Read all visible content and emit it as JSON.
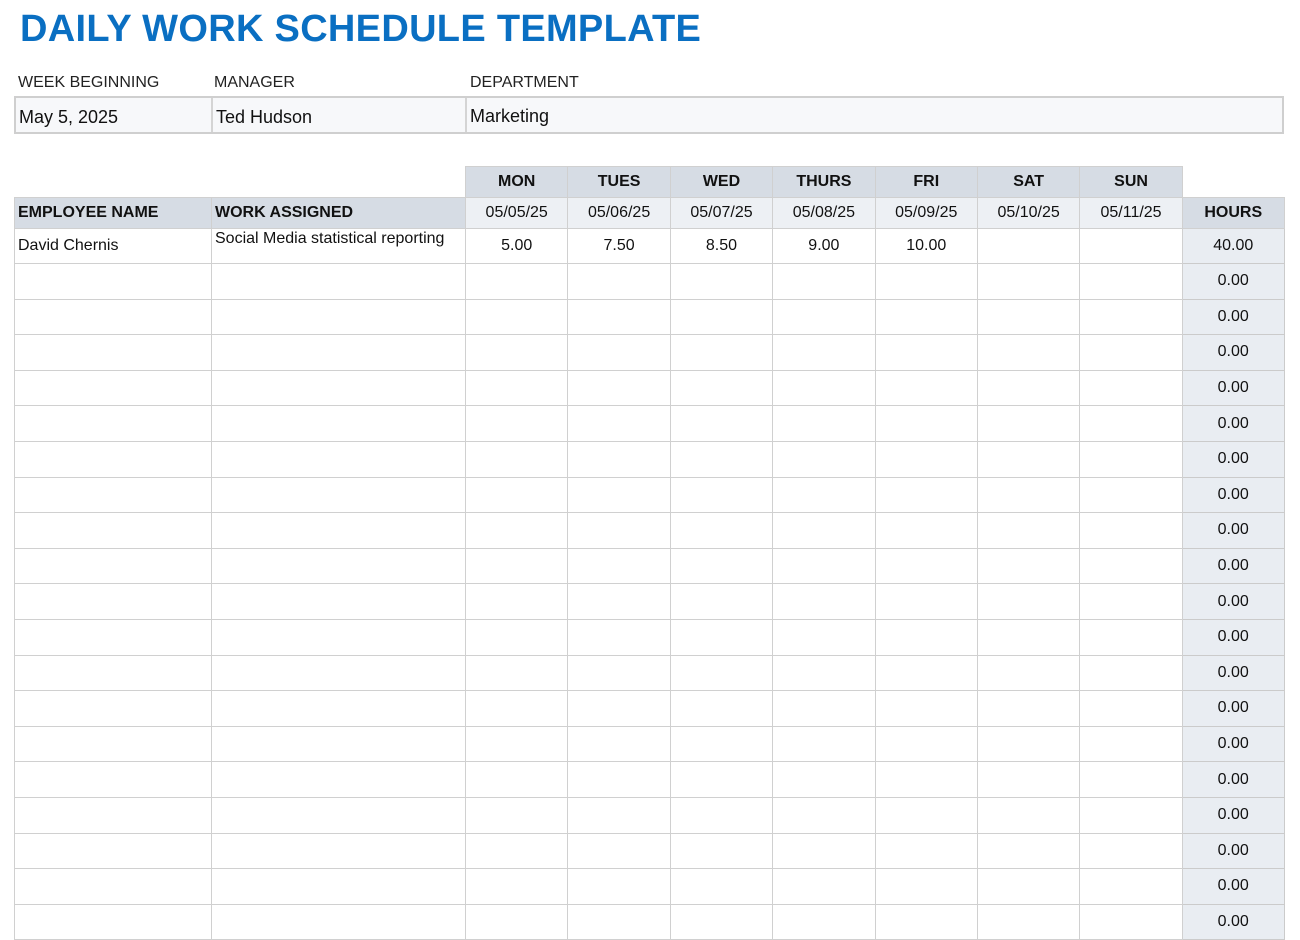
{
  "title": "DAILY WORK SCHEDULE TEMPLATE",
  "info": {
    "week_label": "WEEK BEGINNING",
    "week_value": "May 5, 2025",
    "manager_label": "MANAGER",
    "manager_value": "Ted Hudson",
    "department_label": "DEPARTMENT",
    "department_value": "Marketing"
  },
  "table": {
    "employee_header": "EMPLOYEE NAME",
    "work_header": "WORK ASSIGNED",
    "hours_header": "HOURS",
    "days": [
      {
        "day": "MON",
        "date": "05/05/25"
      },
      {
        "day": "TUES",
        "date": "05/06/25"
      },
      {
        "day": "WED",
        "date": "05/07/25"
      },
      {
        "day": "THURS",
        "date": "05/08/25"
      },
      {
        "day": "FRI",
        "date": "05/09/25"
      },
      {
        "day": "SAT",
        "date": "05/10/25"
      },
      {
        "day": "SUN",
        "date": "05/11/25"
      }
    ],
    "rows": [
      {
        "name": "David Chernis",
        "work": "Social Media statistical reporting",
        "hours": [
          "5.00",
          "7.50",
          "8.50",
          "9.00",
          "10.00",
          "",
          ""
        ],
        "total": "40.00"
      },
      {
        "name": "",
        "work": "",
        "hours": [
          "",
          "",
          "",
          "",
          "",
          "",
          ""
        ],
        "total": "0.00"
      },
      {
        "name": "",
        "work": "",
        "hours": [
          "",
          "",
          "",
          "",
          "",
          "",
          ""
        ],
        "total": "0.00"
      },
      {
        "name": "",
        "work": "",
        "hours": [
          "",
          "",
          "",
          "",
          "",
          "",
          ""
        ],
        "total": "0.00"
      },
      {
        "name": "",
        "work": "",
        "hours": [
          "",
          "",
          "",
          "",
          "",
          "",
          ""
        ],
        "total": "0.00"
      },
      {
        "name": "",
        "work": "",
        "hours": [
          "",
          "",
          "",
          "",
          "",
          "",
          ""
        ],
        "total": "0.00"
      },
      {
        "name": "",
        "work": "",
        "hours": [
          "",
          "",
          "",
          "",
          "",
          "",
          ""
        ],
        "total": "0.00"
      },
      {
        "name": "",
        "work": "",
        "hours": [
          "",
          "",
          "",
          "",
          "",
          "",
          ""
        ],
        "total": "0.00"
      },
      {
        "name": "",
        "work": "",
        "hours": [
          "",
          "",
          "",
          "",
          "",
          "",
          ""
        ],
        "total": "0.00"
      },
      {
        "name": "",
        "work": "",
        "hours": [
          "",
          "",
          "",
          "",
          "",
          "",
          ""
        ],
        "total": "0.00"
      },
      {
        "name": "",
        "work": "",
        "hours": [
          "",
          "",
          "",
          "",
          "",
          "",
          ""
        ],
        "total": "0.00"
      },
      {
        "name": "",
        "work": "",
        "hours": [
          "",
          "",
          "",
          "",
          "",
          "",
          ""
        ],
        "total": "0.00"
      },
      {
        "name": "",
        "work": "",
        "hours": [
          "",
          "",
          "",
          "",
          "",
          "",
          ""
        ],
        "total": "0.00"
      },
      {
        "name": "",
        "work": "",
        "hours": [
          "",
          "",
          "",
          "",
          "",
          "",
          ""
        ],
        "total": "0.00"
      },
      {
        "name": "",
        "work": "",
        "hours": [
          "",
          "",
          "",
          "",
          "",
          "",
          ""
        ],
        "total": "0.00"
      },
      {
        "name": "",
        "work": "",
        "hours": [
          "",
          "",
          "",
          "",
          "",
          "",
          ""
        ],
        "total": "0.00"
      },
      {
        "name": "",
        "work": "",
        "hours": [
          "",
          "",
          "",
          "",
          "",
          "",
          ""
        ],
        "total": "0.00"
      },
      {
        "name": "",
        "work": "",
        "hours": [
          "",
          "",
          "",
          "",
          "",
          "",
          ""
        ],
        "total": "0.00"
      },
      {
        "name": "",
        "work": "",
        "hours": [
          "",
          "",
          "",
          "",
          "",
          "",
          ""
        ],
        "total": "0.00"
      },
      {
        "name": "",
        "work": "",
        "hours": [
          "",
          "",
          "",
          "",
          "",
          "",
          ""
        ],
        "total": "0.00"
      }
    ]
  },
  "colors": {
    "title": "#0a6fc2",
    "header_bg": "#d6dce4",
    "date_bg": "#edf0f4",
    "hours_bg": "#e9edf2"
  }
}
